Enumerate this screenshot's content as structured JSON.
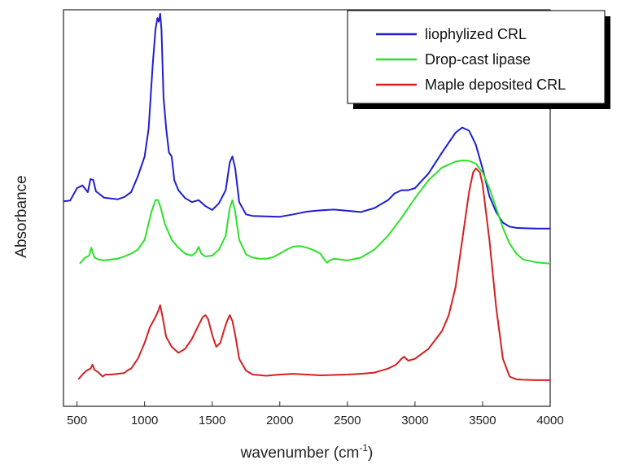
{
  "chart_data": {
    "type": "line",
    "xlabel": "wavenumber (cm",
    "xlabel_sup": "-1",
    "xlabel_close": ")",
    "ylabel": "Absorbance",
    "xlim": [
      400,
      4000
    ],
    "ylim": [
      0,
      1
    ],
    "x_ticks": [
      500,
      1000,
      1500,
      2000,
      2500,
      3000,
      3500,
      4000
    ],
    "x_tick_labels": [
      "500",
      "1000",
      "1500",
      "2000",
      "2500",
      "3000",
      "3500",
      "4000"
    ],
    "y_ticks_shown": false,
    "grid": false,
    "legend_position": "top-right",
    "series": [
      {
        "name": "liophylized CRL",
        "color": "#1f1fd0",
        "x": [
          400,
          450,
          500,
          540,
          580,
          600,
          620,
          640,
          660,
          700,
          750,
          800,
          850,
          900,
          950,
          1000,
          1030,
          1060,
          1080,
          1095,
          1105,
          1115,
          1125,
          1140,
          1160,
          1180,
          1200,
          1220,
          1250,
          1300,
          1350,
          1400,
          1450,
          1500,
          1550,
          1600,
          1630,
          1650,
          1670,
          1700,
          1750,
          1800,
          1900,
          2000,
          2100,
          2200,
          2300,
          2400,
          2500,
          2600,
          2700,
          2800,
          2850,
          2900,
          2950,
          3000,
          3100,
          3200,
          3300,
          3350,
          3400,
          3450,
          3500,
          3550,
          3600,
          3650,
          3700,
          3750,
          3800,
          3900,
          4000
        ],
        "y": [
          0.517,
          0.519,
          0.55,
          0.557,
          0.54,
          0.573,
          0.571,
          0.542,
          0.537,
          0.526,
          0.524,
          0.522,
          0.528,
          0.54,
          0.58,
          0.63,
          0.7,
          0.86,
          0.95,
          0.979,
          0.97,
          0.99,
          0.95,
          0.78,
          0.7,
          0.64,
          0.63,
          0.57,
          0.545,
          0.525,
          0.515,
          0.52,
          0.505,
          0.495,
          0.512,
          0.545,
          0.615,
          0.63,
          0.6,
          0.515,
          0.484,
          0.48,
          0.479,
          0.478,
          0.484,
          0.491,
          0.494,
          0.496,
          0.493,
          0.49,
          0.5,
          0.52,
          0.537,
          0.545,
          0.545,
          0.55,
          0.587,
          0.64,
          0.69,
          0.703,
          0.695,
          0.66,
          0.6,
          0.53,
          0.49,
          0.463,
          0.453,
          0.45,
          0.449,
          0.448,
          0.448
        ]
      },
      {
        "name": "Drop-cast lipase",
        "color": "#2ce02c",
        "x": [
          520,
          560,
          590,
          605,
          615,
          630,
          660,
          700,
          750,
          800,
          850,
          900,
          950,
          1000,
          1050,
          1080,
          1100,
          1120,
          1150,
          1200,
          1250,
          1300,
          1350,
          1380,
          1400,
          1420,
          1450,
          1500,
          1550,
          1600,
          1630,
          1650,
          1670,
          1700,
          1750,
          1800,
          1850,
          1900,
          1950,
          2000,
          2050,
          2100,
          2150,
          2200,
          2250,
          2300,
          2330,
          2350,
          2370,
          2400,
          2450,
          2500,
          2600,
          2700,
          2800,
          2900,
          3000,
          3100,
          3200,
          3300,
          3350,
          3400,
          3450,
          3500,
          3550,
          3600,
          3650,
          3700,
          3750,
          3800,
          3900,
          4000
        ],
        "y": [
          0.36,
          0.375,
          0.38,
          0.4,
          0.39,
          0.375,
          0.37,
          0.368,
          0.37,
          0.372,
          0.378,
          0.385,
          0.395,
          0.42,
          0.49,
          0.52,
          0.52,
          0.5,
          0.46,
          0.42,
          0.4,
          0.385,
          0.38,
          0.388,
          0.402,
          0.385,
          0.378,
          0.38,
          0.395,
          0.43,
          0.5,
          0.52,
          0.49,
          0.42,
          0.383,
          0.375,
          0.372,
          0.372,
          0.376,
          0.385,
          0.395,
          0.403,
          0.404,
          0.4,
          0.394,
          0.385,
          0.37,
          0.362,
          0.368,
          0.372,
          0.37,
          0.368,
          0.375,
          0.395,
          0.43,
          0.475,
          0.525,
          0.57,
          0.602,
          0.617,
          0.62,
          0.619,
          0.612,
          0.59,
          0.55,
          0.5,
          0.45,
          0.41,
          0.385,
          0.37,
          0.363,
          0.36
        ]
      },
      {
        "name": "Maple deposited CRL",
        "color": "#d42020",
        "x": [
          510,
          540,
          570,
          600,
          615,
          630,
          660,
          690,
          710,
          750,
          800,
          850,
          870,
          900,
          950,
          1000,
          1040,
          1080,
          1100,
          1115,
          1130,
          1160,
          1200,
          1250,
          1300,
          1350,
          1400,
          1430,
          1450,
          1470,
          1500,
          1530,
          1560,
          1590,
          1610,
          1630,
          1650,
          1670,
          1700,
          1750,
          1800,
          1900,
          2000,
          2100,
          2200,
          2300,
          2400,
          2500,
          2600,
          2700,
          2800,
          2860,
          2900,
          2920,
          2950,
          3000,
          3100,
          3200,
          3250,
          3300,
          3350,
          3400,
          3430,
          3450,
          3480,
          3500,
          3550,
          3600,
          3650,
          3700,
          3750,
          3800,
          3900,
          4000
        ],
        "y": [
          0.068,
          0.08,
          0.09,
          0.095,
          0.105,
          0.092,
          0.085,
          0.075,
          0.08,
          0.08,
          0.082,
          0.084,
          0.09,
          0.095,
          0.12,
          0.16,
          0.2,
          0.225,
          0.24,
          0.255,
          0.23,
          0.175,
          0.15,
          0.135,
          0.145,
          0.17,
          0.205,
          0.225,
          0.23,
          0.22,
          0.18,
          0.15,
          0.16,
          0.195,
          0.215,
          0.23,
          0.215,
          0.18,
          0.12,
          0.09,
          0.08,
          0.077,
          0.08,
          0.082,
          0.08,
          0.078,
          0.079,
          0.08,
          0.082,
          0.085,
          0.095,
          0.105,
          0.12,
          0.125,
          0.115,
          0.12,
          0.145,
          0.19,
          0.23,
          0.3,
          0.42,
          0.54,
          0.59,
          0.6,
          0.59,
          0.56,
          0.42,
          0.25,
          0.12,
          0.075,
          0.068,
          0.067,
          0.066,
          0.066
        ]
      }
    ]
  }
}
